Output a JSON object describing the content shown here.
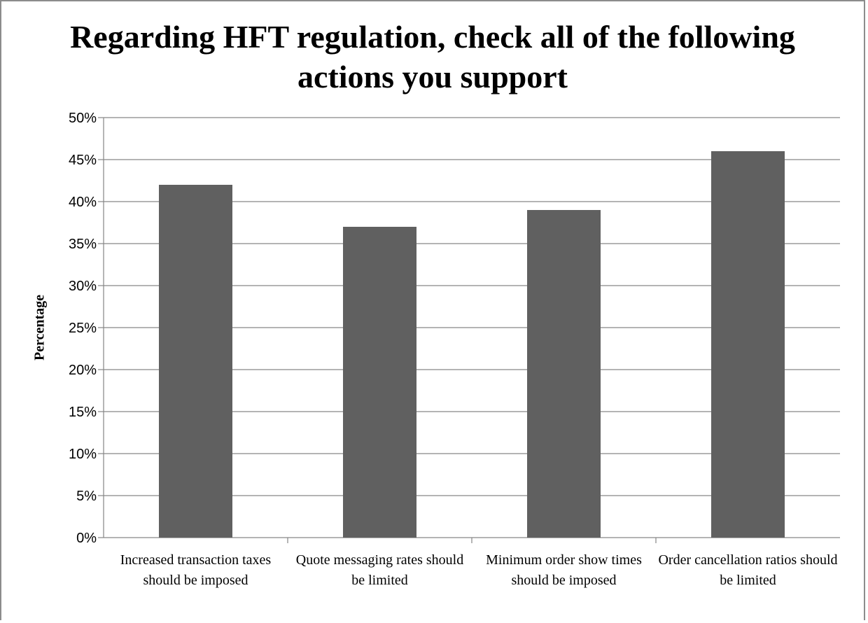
{
  "chart_data": {
    "type": "bar",
    "title": "Regarding HFT regulation, check all of the following actions you support",
    "xlabel": "",
    "ylabel": "Percentage",
    "categories": [
      "Increased transaction taxes should be imposed",
      "Quote messaging rates should be limited",
      "Minimum order show times should be imposed",
      "Order cancellation ratios should be limited"
    ],
    "values": [
      0.42,
      0.37,
      0.39,
      0.46
    ],
    "ylim": [
      0,
      0.5
    ],
    "yticks": [
      0,
      0.05,
      0.1,
      0.15,
      0.2,
      0.25,
      0.3,
      0.35,
      0.4,
      0.45,
      0.5
    ],
    "ytick_labels": [
      "0%",
      "5%",
      "10%",
      "15%",
      "20%",
      "25%",
      "30%",
      "35%",
      "40%",
      "45%",
      "50%"
    ],
    "grid": true,
    "legend": "none",
    "bar_color": "#606060",
    "grid_color": "#868686"
  }
}
